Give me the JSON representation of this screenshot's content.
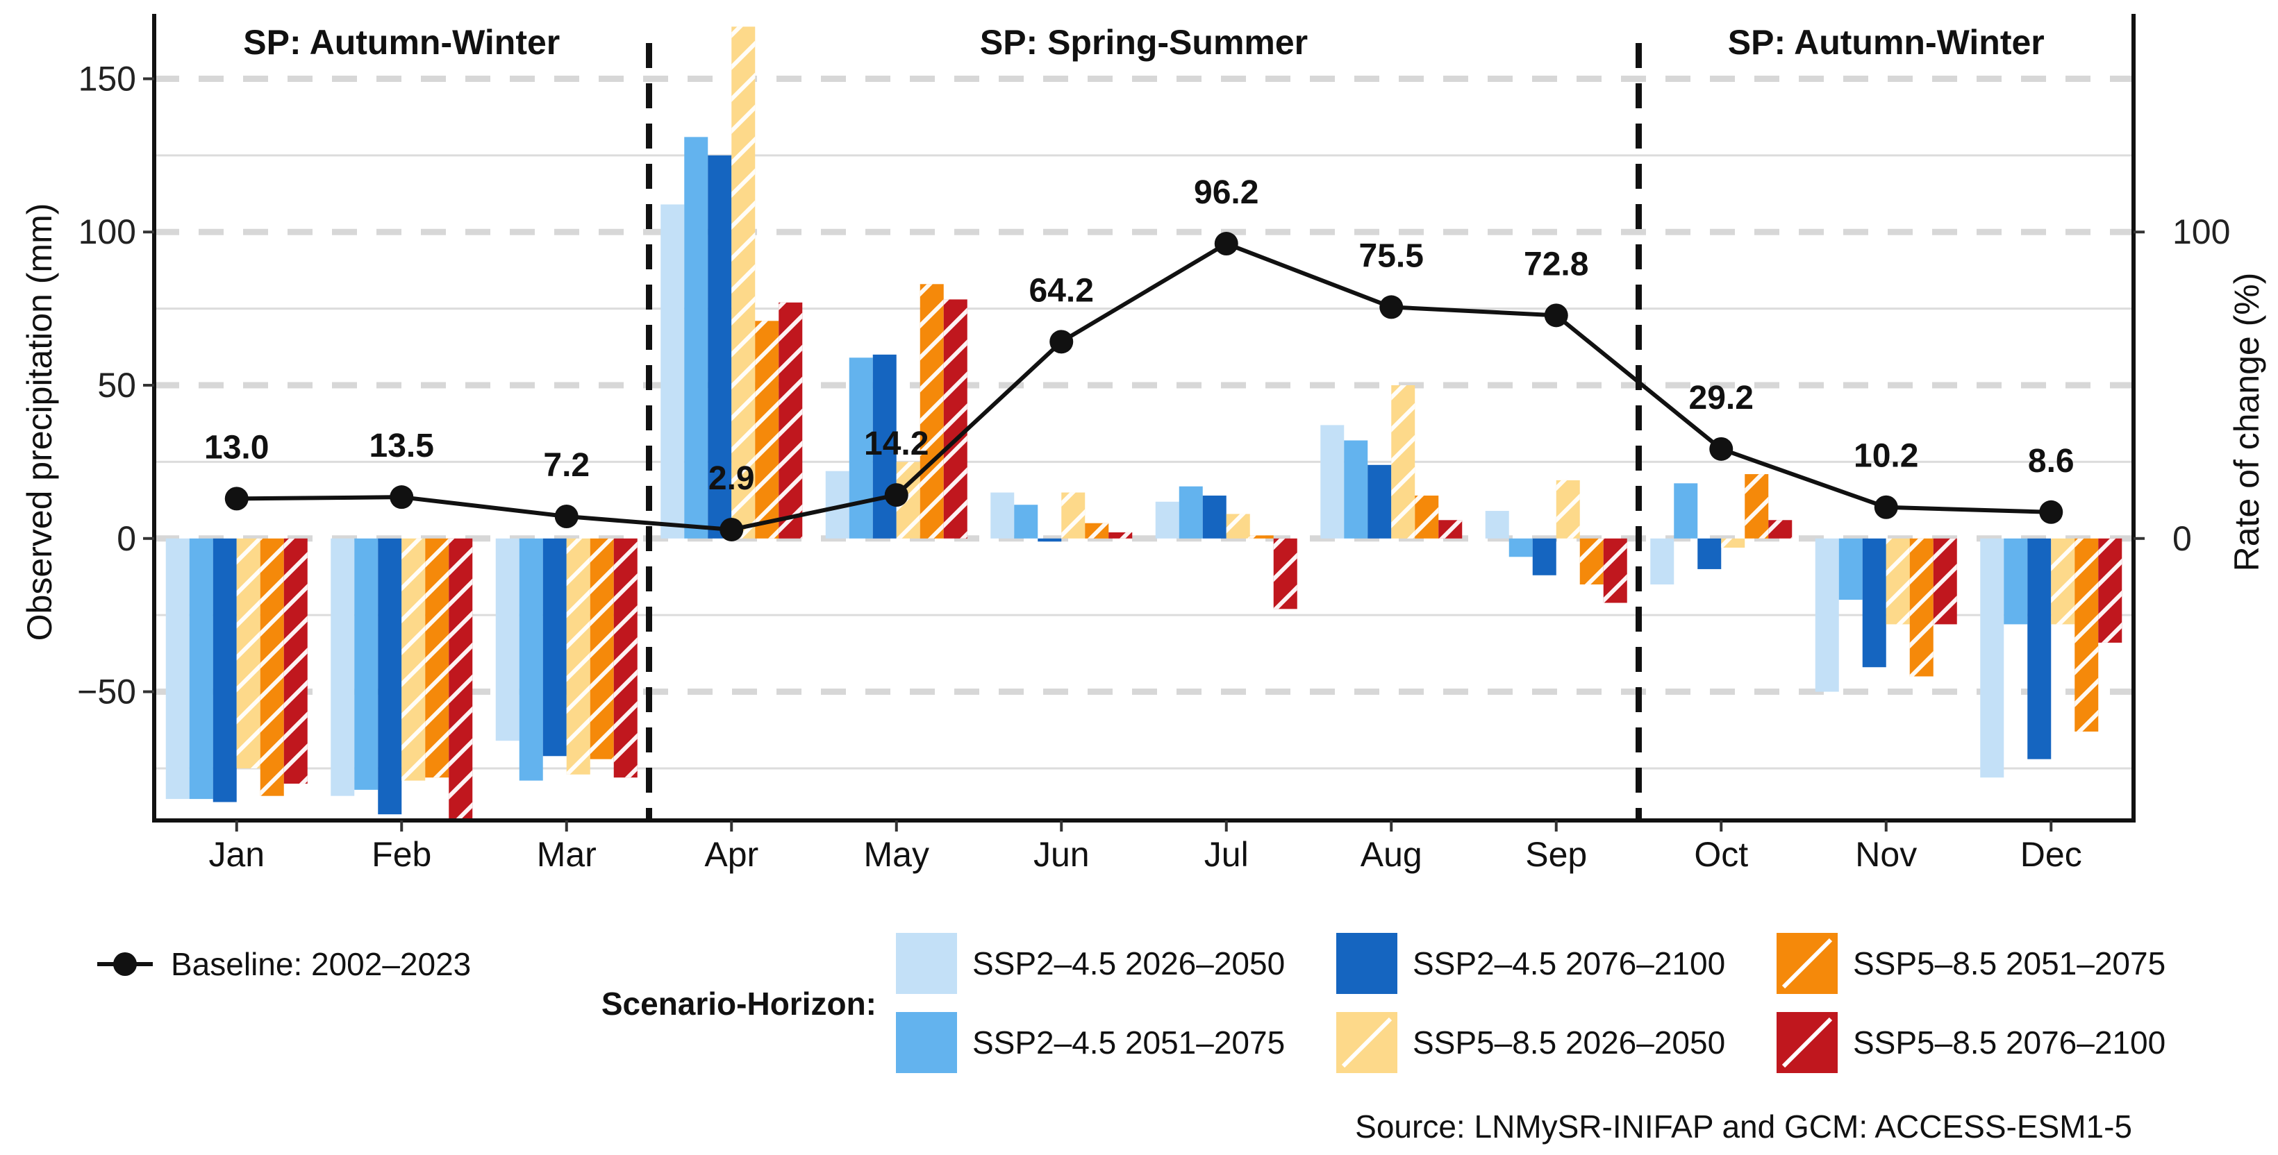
{
  "chart_data": {
    "type": "bar",
    "ylabel_left": "Observed precipitation (mm)",
    "ylabel_right": "Rate of change (%)",
    "ylim_left": [
      -92,
      168
    ],
    "left_ticks": [
      -50,
      0,
      50,
      100,
      150
    ],
    "right_ticks": [
      0,
      100
    ],
    "right_axis_note": "Rate of change (%) axis spans the same vertical range; 0 aligns with 0 mm and 100 aligns with 100 mm.",
    "categories": [
      "Jan",
      "Feb",
      "Mar",
      "Apr",
      "May",
      "Jun",
      "Jul",
      "Aug",
      "Sep",
      "Oct",
      "Nov",
      "Dec"
    ],
    "season_labels": [
      {
        "text": "SP: Autumn-Winter",
        "from": 0,
        "to": 2
      },
      {
        "text": "SP: Spring-Summer",
        "from": 3,
        "to": 8
      },
      {
        "text": "SP: Autumn-Winter",
        "from": 9,
        "to": 11
      }
    ],
    "season_dividers_after": [
      2,
      8
    ],
    "series": [
      {
        "name": "SSP2–4.5 2026–2050",
        "color": "#c3e0f7",
        "hatch": false,
        "values": [
          -85,
          -84,
          -66,
          109,
          22,
          15,
          12,
          37,
          9,
          -15,
          -50,
          -78
        ]
      },
      {
        "name": "SSP2–4.5 2051–2075",
        "color": "#63b3ee",
        "hatch": false,
        "values": [
          -85,
          -82,
          -79,
          131,
          59,
          11,
          17,
          32,
          -6,
          18,
          -20,
          -28
        ]
      },
      {
        "name": "SSP2–4.5 2076–2100",
        "color": "#1565c0",
        "hatch": false,
        "values": [
          -86,
          -90,
          -71,
          125,
          60,
          -1,
          14,
          24,
          -12,
          -10,
          -42,
          -72
        ]
      },
      {
        "name": "SSP5–8.5 2026–2050",
        "color": "#fdd98a",
        "hatch": true,
        "values": [
          -75,
          -79,
          -77,
          167,
          25,
          15,
          8,
          50,
          19,
          -3,
          -28,
          -28
        ]
      },
      {
        "name": "SSP5–8.5 2051–2075",
        "color": "#f5890a",
        "hatch": true,
        "values": [
          -84,
          -78,
          -72,
          71,
          83,
          5,
          1,
          14,
          -15,
          21,
          -45,
          -63
        ]
      },
      {
        "name": "SSP5–8.5 2076–2100",
        "color": "#c0171e",
        "hatch": true,
        "values": [
          -80,
          -92,
          -78,
          77,
          78,
          2,
          -23,
          6,
          -21,
          6,
          -28,
          -34
        ]
      }
    ],
    "baseline": {
      "name": "Baseline: 2002–2023",
      "values": [
        13.0,
        13.5,
        7.2,
        2.9,
        14.2,
        64.2,
        96.2,
        75.5,
        72.8,
        29.2,
        10.2,
        8.6
      ],
      "labels": [
        "13.0",
        "13.5",
        "7.2",
        "2.9",
        "14.2",
        "64.2",
        "96.2",
        "75.5",
        "72.8",
        "29.2",
        "10.2",
        "8.6"
      ]
    },
    "legend_title": "Scenario-Horizon:",
    "legend_position": "bottom",
    "grid": true
  },
  "source_text": "Source: LNMySR-INIFAP and GCM: ACCESS-ESM1-5"
}
